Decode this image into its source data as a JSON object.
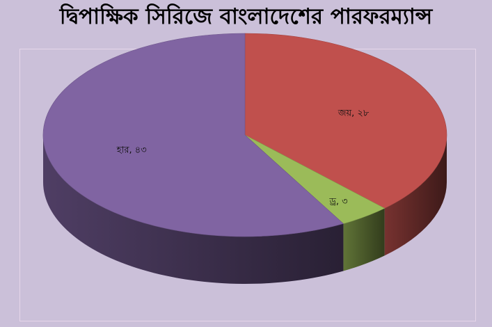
{
  "title": "দ্বিপাক্ষিক সিরিজে বাংলাদেশের পারফরম্যান্স",
  "chart_data": {
    "type": "pie",
    "title": "দ্বিপাক্ষিক সিরিজে বাংলাদেশের পারফরম্যান্স",
    "style": "3d",
    "slices": [
      {
        "name": "জয়",
        "value": 28,
        "label": "জয়, ২৮",
        "color": "#c0504d"
      },
      {
        "name": "ড্র",
        "value": 3,
        "label": "ড্র, ৩",
        "color": "#9bbb59"
      },
      {
        "name": "হার",
        "value": 43,
        "label": "হার, ৪৩",
        "color": "#8064a2"
      }
    ],
    "legend": "none"
  }
}
